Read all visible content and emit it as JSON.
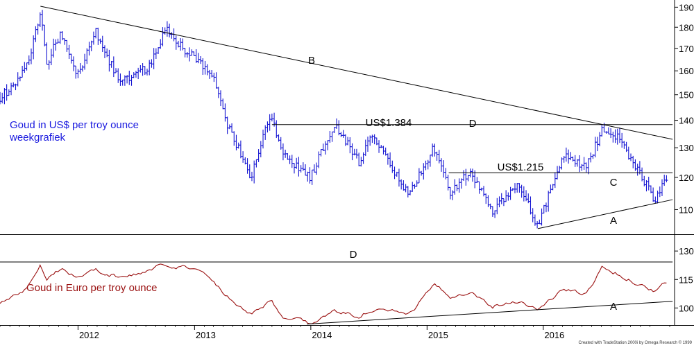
{
  "chart_data": [
    {
      "type": "candlestick",
      "title": "Goud in US$ per troy ounce",
      "subtitle": "weekgrafiek",
      "title_color": "#1a1adf",
      "bar_color": "#1414d2",
      "y_scale": "log",
      "ylim": [
        1035,
        1930
      ],
      "yticks": [
        "190",
        "180",
        "170",
        "160",
        "150",
        "140",
        "130",
        "120",
        "110"
      ],
      "xticks": [
        "2012",
        "2013",
        "2014",
        "2015",
        "2016"
      ],
      "xlim": [
        "2011-05",
        "2017-02"
      ],
      "anchors": [
        {
          "date": "2011-05-01",
          "value": 1490
        },
        {
          "date": "2011-06-15",
          "value": 1540
        },
        {
          "date": "2011-08-01",
          "value": 1650
        },
        {
          "date": "2011-09-05",
          "value": 1880
        },
        {
          "date": "2011-09-25",
          "value": 1620
        },
        {
          "date": "2011-10-20",
          "value": 1720
        },
        {
          "date": "2011-11-10",
          "value": 1770
        },
        {
          "date": "2011-12-28",
          "value": 1570
        },
        {
          "date": "2012-02-25",
          "value": 1780
        },
        {
          "date": "2012-04-01",
          "value": 1660
        },
        {
          "date": "2012-05-15",
          "value": 1550
        },
        {
          "date": "2012-07-10",
          "value": 1590
        },
        {
          "date": "2012-08-10",
          "value": 1620
        },
        {
          "date": "2012-10-05",
          "value": 1790
        },
        {
          "date": "2012-11-10",
          "value": 1720
        },
        {
          "date": "2012-12-28",
          "value": 1660
        },
        {
          "date": "2013-02-25",
          "value": 1580
        },
        {
          "date": "2013-04-15",
          "value": 1380
        },
        {
          "date": "2013-06-28",
          "value": 1200
        },
        {
          "date": "2013-08-28",
          "value": 1420
        },
        {
          "date": "2013-10-10",
          "value": 1270
        },
        {
          "date": "2013-12-31",
          "value": 1200
        },
        {
          "date": "2014-03-15",
          "value": 1385
        },
        {
          "date": "2014-06-01",
          "value": 1250
        },
        {
          "date": "2014-07-10",
          "value": 1340
        },
        {
          "date": "2014-09-15",
          "value": 1230
        },
        {
          "date": "2014-11-05",
          "value": 1140
        },
        {
          "date": "2015-01-22",
          "value": 1300
        },
        {
          "date": "2015-03-15",
          "value": 1150
        },
        {
          "date": "2015-05-15",
          "value": 1220
        },
        {
          "date": "2015-07-25",
          "value": 1090
        },
        {
          "date": "2015-10-15",
          "value": 1180
        },
        {
          "date": "2015-12-15",
          "value": 1050
        },
        {
          "date": "2016-03-05",
          "value": 1270
        },
        {
          "date": "2016-05-15",
          "value": 1230
        },
        {
          "date": "2016-07-06",
          "value": 1370
        },
        {
          "date": "2016-08-20",
          "value": 1340
        },
        {
          "date": "2016-10-10",
          "value": 1250
        },
        {
          "date": "2016-12-15",
          "value": 1130
        },
        {
          "date": "2017-01-28",
          "value": 1200
        }
      ],
      "annotations": [
        {
          "name": "line-b",
          "label": "B",
          "kind": "trendline",
          "from": {
            "date": "2011-09-05",
            "value": 1905
          },
          "to": {
            "date": "2017-02-10",
            "value": 1330
          }
        },
        {
          "name": "line-d",
          "label": "D",
          "price_label": "US$1.384",
          "kind": "horizontal",
          "value": 1384,
          "from_date": "2013-09-01",
          "to_date": "2017-02-10"
        },
        {
          "name": "line-c",
          "label": "C",
          "price_label": "US$1.215",
          "kind": "horizontal",
          "value": 1215,
          "from_date": "2015-03-10",
          "to_date": "2017-02-10"
        },
        {
          "name": "line-a",
          "label": "A",
          "kind": "trendline",
          "from": {
            "date": "2015-12-15",
            "value": 1045
          },
          "to": {
            "date": "2017-02-10",
            "value": 1130
          }
        }
      ]
    },
    {
      "type": "line",
      "title": "Goud in Euro per troy ounce",
      "title_color": "#9a1010",
      "line_color": "#9a1010",
      "y_scale": "linear",
      "ylim": [
        91,
        137
      ],
      "yticks": [
        "130",
        "115",
        "100"
      ],
      "xlim": [
        "2011-05",
        "2017-02"
      ],
      "anchors": [
        {
          "date": "2011-05-01",
          "value": 103
        },
        {
          "date": "2011-06-15",
          "value": 106
        },
        {
          "date": "2011-07-25",
          "value": 111
        },
        {
          "date": "2011-09-05",
          "value": 123
        },
        {
          "date": "2011-09-25",
          "value": 116
        },
        {
          "date": "2011-11-10",
          "value": 121
        },
        {
          "date": "2011-12-28",
          "value": 116
        },
        {
          "date": "2012-02-25",
          "value": 120
        },
        {
          "date": "2012-05-15",
          "value": 116
        },
        {
          "date": "2012-07-10",
          "value": 118
        },
        {
          "date": "2012-10-05",
          "value": 123
        },
        {
          "date": "2012-12-28",
          "value": 121
        },
        {
          "date": "2013-02-25",
          "value": 115
        },
        {
          "date": "2013-04-15",
          "value": 106
        },
        {
          "date": "2013-06-28",
          "value": 97
        },
        {
          "date": "2013-08-28",
          "value": 104
        },
        {
          "date": "2013-10-10",
          "value": 95
        },
        {
          "date": "2013-12-31",
          "value": 92
        },
        {
          "date": "2014-03-15",
          "value": 98
        },
        {
          "date": "2014-06-01",
          "value": 96
        },
        {
          "date": "2014-07-10",
          "value": 99
        },
        {
          "date": "2014-09-15",
          "value": 98
        },
        {
          "date": "2014-11-05",
          "value": 96
        },
        {
          "date": "2015-01-22",
          "value": 112
        },
        {
          "date": "2015-03-15",
          "value": 106
        },
        {
          "date": "2015-05-15",
          "value": 109
        },
        {
          "date": "2015-07-25",
          "value": 101
        },
        {
          "date": "2015-10-15",
          "value": 104
        },
        {
          "date": "2015-12-15",
          "value": 99
        },
        {
          "date": "2016-03-05",
          "value": 110
        },
        {
          "date": "2016-05-15",
          "value": 107
        },
        {
          "date": "2016-07-06",
          "value": 122
        },
        {
          "date": "2016-08-20",
          "value": 118
        },
        {
          "date": "2016-10-10",
          "value": 114
        },
        {
          "date": "2016-12-15",
          "value": 109
        },
        {
          "date": "2017-01-28",
          "value": 114
        }
      ],
      "annotations": [
        {
          "name": "line-d",
          "label": "D",
          "kind": "horizontal",
          "value": 124.2,
          "from_date": "2011-05-01",
          "to_date": "2017-02-10"
        },
        {
          "name": "line-a",
          "label": "A",
          "kind": "trendline",
          "from": {
            "date": "2013-12-20",
            "value": 91.5
          },
          "to": {
            "date": "2017-02-10",
            "value": 103.5
          }
        }
      ]
    }
  ],
  "credit": "Created with TradeStation 2000i by Omega Research © 1999"
}
